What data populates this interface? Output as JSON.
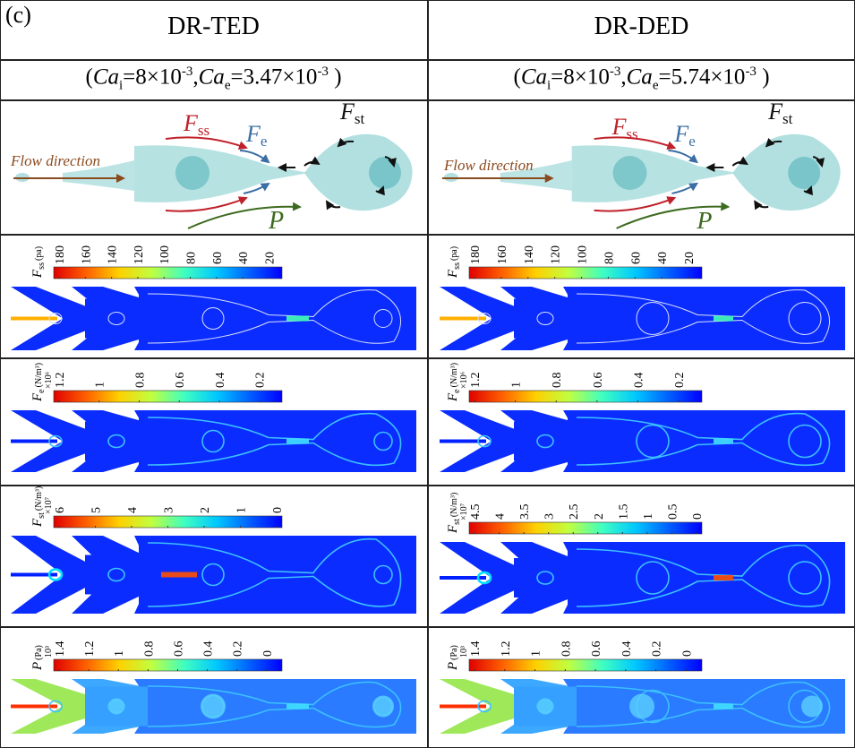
{
  "panel_label": "(c)",
  "columns": [
    {
      "title": "DR-TED",
      "ca_i_sym": "Ca",
      "ca_i_sub": "i",
      "ca_i_val": "=8×10",
      "ca_i_exp": "-3",
      "ca_e_sym": "Ca",
      "ca_e_sub": "e",
      "ca_e_val": "=3.47×10",
      "ca_e_exp": "-3"
    },
    {
      "title": "DR-DED",
      "ca_i_sym": "Ca",
      "ca_i_sub": "i",
      "ca_i_val": "=8×10",
      "ca_i_exp": "-3",
      "ca_e_sym": "Ca",
      "ca_e_sub": "e",
      "ca_e_val": "=5.74×10",
      "ca_e_exp": "-3"
    }
  ],
  "schematic": {
    "flow_direction": "Flow direction",
    "fss": {
      "sym": "F",
      "sub": "ss"
    },
    "fe": {
      "sym": "F",
      "sub": "e"
    },
    "fst": {
      "sym": "F",
      "sub": "st"
    },
    "p": "P",
    "colors": {
      "fss": "#c0202a",
      "fe": "#3a6ea5",
      "fst": "#111111",
      "p": "#3d6b1f",
      "flow": "#8b4a1e",
      "droplet": "#9fd8d8"
    }
  },
  "fields": [
    {
      "key": "fss",
      "sym": "F",
      "sub": "ss",
      "unit": "(pa)",
      "mult": "",
      "left_ticks": [
        "180",
        "160",
        "140",
        "120",
        "100",
        "80",
        "60",
        "40",
        "20"
      ],
      "right_ticks": [
        "180",
        "160",
        "140",
        "120",
        "100",
        "80",
        "60",
        "40",
        "20"
      ]
    },
    {
      "key": "fe",
      "sym": "F",
      "sub": "e",
      "unit": "(N/m³)",
      "mult": "×10⁶",
      "left_ticks": [
        "1.2",
        "1",
        "0.8",
        "0.6",
        "0.4",
        "0.2"
      ],
      "right_ticks": [
        "1.2",
        "1",
        "0.8",
        "0.6",
        "0.4",
        "0.2"
      ]
    },
    {
      "key": "fst",
      "sym": "F",
      "sub": "st",
      "unit": "(N/m³)",
      "mult": "×10⁷",
      "left_ticks": [
        "6",
        "5",
        "4",
        "3",
        "2",
        "1",
        "0"
      ],
      "right_ticks": [
        "4.5",
        "4",
        "3.5",
        "3",
        "2.5",
        "2",
        "1.5",
        "1",
        "0.5",
        "0"
      ]
    },
    {
      "key": "p",
      "sym": "P",
      "sub": "",
      "unit": "(Pa)",
      "mult": "10³",
      "left_ticks": [
        "1.4",
        "1.2",
        "1",
        "0.8",
        "0.6",
        "0.4",
        "0.2",
        "0"
      ],
      "right_ticks": [
        "1.4",
        "1.2",
        "1",
        "0.8",
        "0.6",
        "0.4",
        "0.2",
        "0"
      ]
    }
  ]
}
